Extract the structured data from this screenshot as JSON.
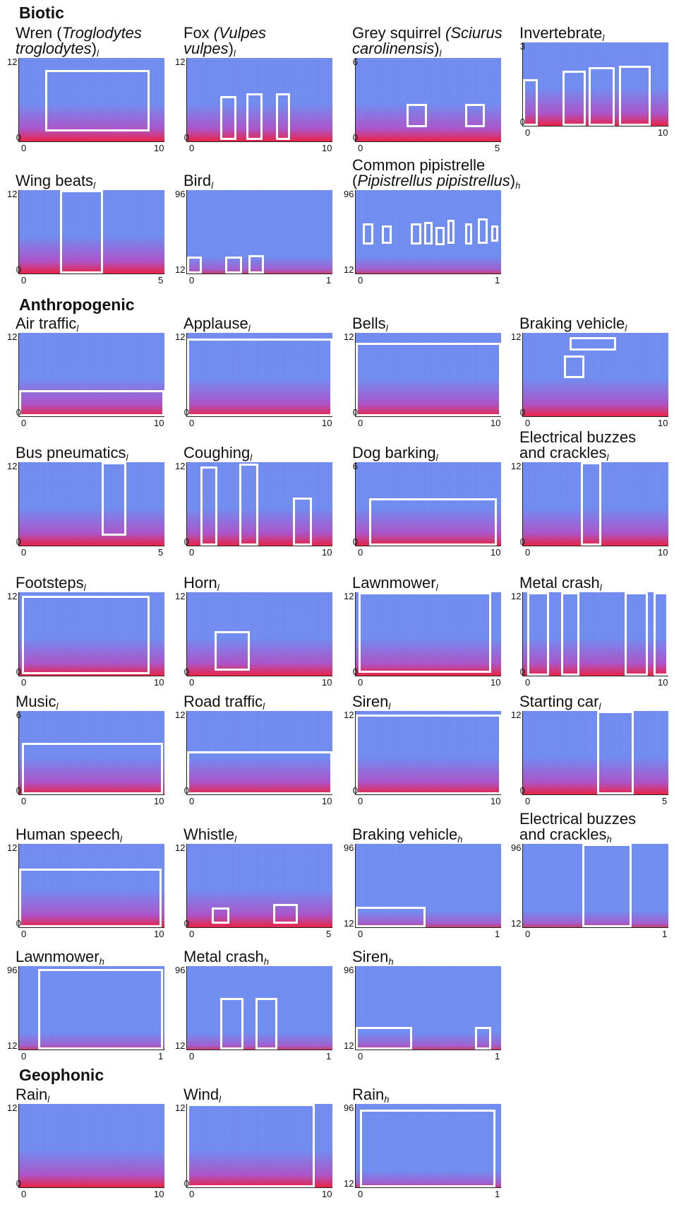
{
  "sections": {
    "biotic": "Biotic",
    "anthropogenic": "Anthropogenic",
    "geophonic": "Geophonic"
  },
  "panels": [
    {
      "id": "wren",
      "l1": "Wren (",
      "l1i": "Troglodytes",
      "l2i": "troglodytes",
      "l2": ")",
      "sub": "l",
      "ymax": "12",
      "ymin": "0",
      "xmin": "0",
      "xmax": "10"
    },
    {
      "id": "fox",
      "l1": "Fox ",
      "l1i": "(Vulpes",
      "l2i": "vulpes",
      "l2": ")",
      "sub": "l",
      "ymax": "12",
      "ymin": "0",
      "xmin": "0",
      "xmax": "10"
    },
    {
      "id": "grey-squirrel",
      "l1": "Grey squirrel ",
      "l1i": "(Sciurus",
      "l2i": "carolinensis",
      "l2": ")",
      "sub": "l",
      "ymax": "6",
      "ymin": "0",
      "xmin": "0",
      "xmax": "5"
    },
    {
      "id": "invertebrate",
      "l1": "Invertebrate",
      "sub": "l",
      "ymax": "3",
      "ymin": "0",
      "xmin": "0",
      "xmax": "10"
    },
    {
      "id": "wing-beats",
      "l1": "Wing beats",
      "sub": "l",
      "ymax": "12",
      "ymin": "0",
      "xmin": "0",
      "xmax": "5"
    },
    {
      "id": "bird",
      "l1": "Bird",
      "sub": "l",
      "ymax": "96",
      "ymin": "12",
      "xmin": "0",
      "xmax": "1"
    },
    {
      "id": "common-pipistrelle",
      "l1": "Common pipistrelle",
      "l2": "(",
      "l2i": "Pipistrellus pipistrellus",
      "l2b": ")",
      "sub": "h",
      "ymax": "96",
      "ymin": "12",
      "xmin": "0",
      "xmax": "1"
    },
    {
      "id": "air-traffic",
      "l1": "Air traffic",
      "sub": "l",
      "ymax": "12",
      "ymin": "0",
      "xmin": "0",
      "xmax": "10"
    },
    {
      "id": "applause",
      "l1": "Applause",
      "sub": "l",
      "ymax": "12",
      "ymin": "0",
      "xmin": "0",
      "xmax": "10"
    },
    {
      "id": "bells",
      "l1": "Bells",
      "sub": "l",
      "ymax": "12",
      "ymin": "0",
      "xmin": "0",
      "xmax": "10"
    },
    {
      "id": "braking-vehicle-l",
      "l1": "Braking vehicle",
      "sub": "l",
      "ymax": "12",
      "ymin": "0",
      "xmin": "0",
      "xmax": "10"
    },
    {
      "id": "bus-pneumatics",
      "l1": "Bus pneumatics",
      "sub": "l",
      "ymax": "12",
      "ymin": "0",
      "xmin": "0",
      "xmax": "5"
    },
    {
      "id": "coughing",
      "l1": "Coughing",
      "sub": "l",
      "ymax": "12",
      "ymin": "0",
      "xmin": "0",
      "xmax": "10"
    },
    {
      "id": "dog-barking",
      "l1": "Dog barking",
      "sub": "l",
      "ymax": "6",
      "ymin": "0",
      "xmin": "0",
      "xmax": "10"
    },
    {
      "id": "electrical-buzzes-l",
      "l1": "Electrical buzzes",
      "l2": "and crackles",
      "sub": "l",
      "ymax": "12",
      "ymin": "0",
      "xmin": "0",
      "xmax": "10"
    },
    {
      "id": "footsteps",
      "l1": "Footsteps",
      "sub": "l",
      "ymax": "12",
      "ymin": "0",
      "xmin": "0",
      "xmax": "10"
    },
    {
      "id": "horn",
      "l1": "Horn",
      "sub": "l",
      "ymax": "12",
      "ymin": "0",
      "xmin": "0",
      "xmax": "10"
    },
    {
      "id": "lawnmower-l",
      "l1": "Lawnmower",
      "sub": "l",
      "ymax": "12",
      "ymin": "0",
      "xmin": "0",
      "xmax": "10"
    },
    {
      "id": "metal-crash-l",
      "l1": "Metal crash",
      "sub": "l",
      "ymax": "12",
      "ymin": "0",
      "xmin": "0",
      "xmax": "10"
    },
    {
      "id": "music",
      "l1": "Music",
      "sub": "l",
      "ymax": "6",
      "ymin": "0",
      "xmin": "0",
      "xmax": "10"
    },
    {
      "id": "road-traffic",
      "l1": "Road traffic",
      "sub": "l",
      "ymax": "12",
      "ymin": "0",
      "xmin": "0",
      "xmax": "10"
    },
    {
      "id": "siren-l",
      "l1": "Siren",
      "sub": "l",
      "ymax": "12",
      "ymin": "0",
      "xmin": "0",
      "xmax": "10"
    },
    {
      "id": "starting-car",
      "l1": "Starting car",
      "sub": "l",
      "ymax": "12",
      "ymin": "0",
      "xmin": "0",
      "xmax": "5"
    },
    {
      "id": "human-speech",
      "l1": "Human speech",
      "sub": "l",
      "ymax": "12",
      "ymin": "0",
      "xmin": "0",
      "xmax": "10"
    },
    {
      "id": "whistle",
      "l1": "Whistle",
      "sub": "l",
      "ymax": "12",
      "ymin": "0",
      "xmin": "0",
      "xmax": "5"
    },
    {
      "id": "braking-vehicle-h",
      "l1": "Braking vehicle",
      "sub": "h",
      "ymax": "96",
      "ymin": "12",
      "xmin": "0",
      "xmax": "1"
    },
    {
      "id": "electrical-buzzes-h",
      "l1": "Electrical buzzes",
      "l2": "and crackles",
      "sub": "h",
      "ymax": "96",
      "ymin": "12",
      "xmin": "0",
      "xmax": "1"
    },
    {
      "id": "lawnmower-h",
      "l1": "Lawnmower",
      "sub": "h",
      "ymax": "96",
      "ymin": "12",
      "xmin": "0",
      "xmax": "1"
    },
    {
      "id": "metal-crash-h",
      "l1": "Metal crash",
      "sub": "h",
      "ymax": "96",
      "ymin": "12",
      "xmin": "0",
      "xmax": "1"
    },
    {
      "id": "siren-h",
      "l1": "Siren",
      "sub": "h",
      "ymax": "96",
      "ymin": "12",
      "xmin": "0",
      "xmax": "1"
    },
    {
      "id": "rain-l",
      "l1": "Rain",
      "sub": "l",
      "ymax": "12",
      "ymin": "0",
      "xmin": "0",
      "xmax": "10"
    },
    {
      "id": "wind",
      "l1": "Wind",
      "sub": "l",
      "ymax": "12",
      "ymin": "0",
      "xmin": "0",
      "xmax": "10"
    },
    {
      "id": "rain-h",
      "l1": "Rain",
      "sub": "h",
      "ymax": "96",
      "ymin": "12",
      "xmin": "0",
      "xmax": "1"
    }
  ]
}
